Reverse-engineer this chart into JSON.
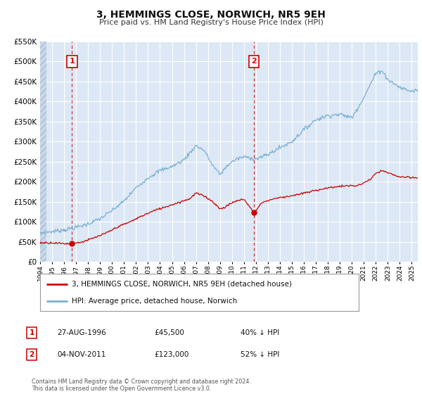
{
  "title": "3, HEMMINGS CLOSE, NORWICH, NR5 9EH",
  "subtitle": "Price paid vs. HM Land Registry's House Price Index (HPI)",
  "bg_color": "#ffffff",
  "plot_bg_color": "#dce8f5",
  "grid_color": "#ffffff",
  "hatch_color": "#c8d8ea",
  "red_line_color": "#cc0000",
  "blue_line_color": "#7ab0d4",
  "sale1_date": "27-AUG-1996",
  "sale1_price": "£45,500",
  "sale1_hpi": "40% ↓ HPI",
  "sale2_date": "04-NOV-2011",
  "sale2_price": "£123,000",
  "sale2_hpi": "52% ↓ HPI",
  "legend_line1": "3, HEMMINGS CLOSE, NORWICH, NR5 9EH (detached house)",
  "legend_line2": "HPI: Average price, detached house, Norwich",
  "footnote": "Contains HM Land Registry data © Crown copyright and database right 2024.\nThis data is licensed under the Open Government Licence v3.0.",
  "xmin": 1994.0,
  "xmax": 2025.5,
  "ymin": 0,
  "ymax": 550000,
  "yticks": [
    0,
    50000,
    100000,
    150000,
    200000,
    250000,
    300000,
    350000,
    400000,
    450000,
    500000,
    550000
  ],
  "sale1_x": 1996.667,
  "sale1_y": 45500,
  "sale2_x": 2011.833,
  "sale2_y": 123000,
  "hpi_x": [
    1994.0,
    1995.0,
    1996.0,
    1997.0,
    1998.0,
    1999.0,
    2000.0,
    2001.0,
    2002.0,
    2003.0,
    2004.0,
    2005.0,
    2006.0,
    2007.0,
    2007.7,
    2008.3,
    2009.0,
    2009.6,
    2010.0,
    2010.5,
    2011.0,
    2011.5,
    2012.0,
    2012.5,
    2013.0,
    2014.0,
    2015.0,
    2016.0,
    2017.0,
    2018.0,
    2019.0,
    2020.0,
    2021.0,
    2022.0,
    2022.5,
    2023.0,
    2024.0,
    2025.0,
    2025.5
  ],
  "hpi_y": [
    72000,
    76000,
    80000,
    86000,
    95000,
    108000,
    128000,
    152000,
    185000,
    210000,
    228000,
    238000,
    255000,
    290000,
    278000,
    245000,
    218000,
    240000,
    250000,
    258000,
    262000,
    260000,
    257000,
    262000,
    268000,
    285000,
    300000,
    330000,
    355000,
    365000,
    368000,
    360000,
    410000,
    470000,
    478000,
    455000,
    435000,
    425000,
    430000
  ],
  "red_x": [
    1994.0,
    1995.0,
    1996.0,
    1996.667,
    1997.5,
    1998.5,
    1999.5,
    2000.5,
    2001.5,
    2002.5,
    2003.5,
    2004.5,
    2005.5,
    2006.5,
    2007.0,
    2007.8,
    2008.5,
    2009.0,
    2009.5,
    2010.0,
    2010.5,
    2011.0,
    2011.833,
    2012.5,
    2013.5,
    2014.5,
    2015.5,
    2016.5,
    2017.5,
    2018.5,
    2019.5,
    2020.5,
    2021.5,
    2022.0,
    2022.5,
    2023.0,
    2024.0,
    2025.0,
    2025.5
  ],
  "red_y": [
    48000,
    48000,
    46000,
    45500,
    50000,
    60000,
    72000,
    88000,
    100000,
    115000,
    128000,
    138000,
    148000,
    158000,
    172000,
    163000,
    148000,
    132000,
    138000,
    148000,
    153000,
    157000,
    123000,
    148000,
    158000,
    163000,
    168000,
    175000,
    182000,
    187000,
    190000,
    190000,
    205000,
    220000,
    228000,
    222000,
    212000,
    210000,
    210000
  ]
}
